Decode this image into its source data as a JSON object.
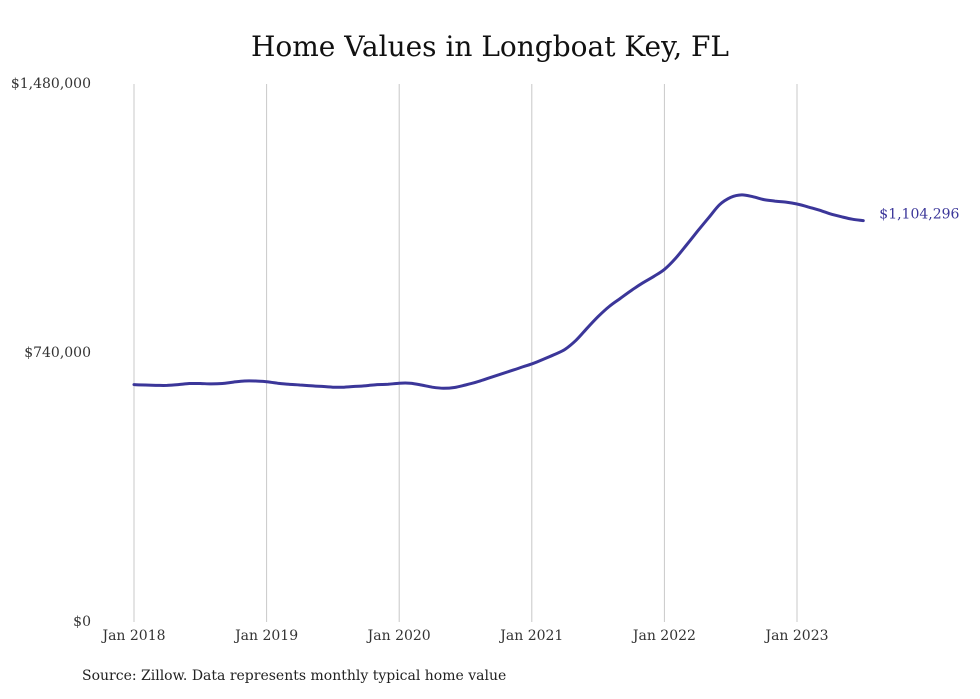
{
  "title": "Home Values in Longboat Key, FL",
  "source": "Source: Zillow. Data represents monthly typical home value",
  "colors": {
    "line": "#3b3699",
    "grid": "#c8c8c8",
    "end_label": "#3b3699"
  },
  "chart_data": {
    "type": "line",
    "title": "Home Values in Longboat Key, FL",
    "xlabel": "",
    "ylabel": "",
    "ylim": [
      0,
      1480000
    ],
    "y_ticks": [
      {
        "value": 0,
        "label": "$0"
      },
      {
        "value": 740000,
        "label": "$740,000"
      },
      {
        "value": 1480000,
        "label": "$1,480,000"
      }
    ],
    "x_ticks": [
      {
        "value": "2018-01",
        "label": "Jan 2018"
      },
      {
        "value": "2019-01",
        "label": "Jan 2019"
      },
      {
        "value": "2020-01",
        "label": "Jan 2020"
      },
      {
        "value": "2021-01",
        "label": "Jan 2021"
      },
      {
        "value": "2022-01",
        "label": "Jan 2022"
      },
      {
        "value": "2023-01",
        "label": "Jan 2023"
      }
    ],
    "grid": "vertical",
    "end_label": "$1,104,296",
    "series": [
      {
        "points": [
          [
            "2018-01",
            653000
          ],
          [
            "2018-02",
            652000
          ],
          [
            "2018-03",
            651000
          ],
          [
            "2018-04",
            651000
          ],
          [
            "2018-05",
            653000
          ],
          [
            "2018-06",
            656000
          ],
          [
            "2018-07",
            656000
          ],
          [
            "2018-08",
            655000
          ],
          [
            "2018-09",
            656000
          ],
          [
            "2018-10",
            660000
          ],
          [
            "2018-11",
            663000
          ],
          [
            "2018-12",
            663000
          ],
          [
            "2019-01",
            661000
          ],
          [
            "2019-02",
            657000
          ],
          [
            "2019-03",
            654000
          ],
          [
            "2019-04",
            652000
          ],
          [
            "2019-05",
            650000
          ],
          [
            "2019-06",
            648000
          ],
          [
            "2019-07",
            646000
          ],
          [
            "2019-08",
            646000
          ],
          [
            "2019-09",
            648000
          ],
          [
            "2019-10",
            650000
          ],
          [
            "2019-11",
            653000
          ],
          [
            "2019-12",
            654000
          ],
          [
            "2020-01",
            657000
          ],
          [
            "2020-02",
            657000
          ],
          [
            "2020-03",
            652000
          ],
          [
            "2020-04",
            646000
          ],
          [
            "2020-05",
            643000
          ],
          [
            "2020-06",
            645000
          ],
          [
            "2020-07",
            652000
          ],
          [
            "2020-08",
            660000
          ],
          [
            "2020-09",
            670000
          ],
          [
            "2020-10",
            680000
          ],
          [
            "2020-11",
            690000
          ],
          [
            "2020-12",
            700000
          ],
          [
            "2021-01",
            710000
          ],
          [
            "2021-02",
            722000
          ],
          [
            "2021-03",
            735000
          ],
          [
            "2021-04",
            750000
          ],
          [
            "2021-05",
            775000
          ],
          [
            "2021-06",
            808000
          ],
          [
            "2021-07",
            840000
          ],
          [
            "2021-08",
            868000
          ],
          [
            "2021-09",
            890000
          ],
          [
            "2021-10",
            912000
          ],
          [
            "2021-11",
            932000
          ],
          [
            "2021-12",
            950000
          ],
          [
            "2022-01",
            970000
          ],
          [
            "2022-02",
            1000000
          ],
          [
            "2022-03",
            1037000
          ],
          [
            "2022-04",
            1075000
          ],
          [
            "2022-05",
            1112000
          ],
          [
            "2022-06",
            1148000
          ],
          [
            "2022-07",
            1168000
          ],
          [
            "2022-08",
            1175000
          ],
          [
            "2022-09",
            1170000
          ],
          [
            "2022-10",
            1162000
          ],
          [
            "2022-11",
            1158000
          ],
          [
            "2022-12",
            1155000
          ],
          [
            "2023-01",
            1150000
          ],
          [
            "2023-02",
            1142000
          ],
          [
            "2023-03",
            1133000
          ],
          [
            "2023-04",
            1123000
          ],
          [
            "2023-05",
            1115000
          ],
          [
            "2023-06",
            1108000
          ],
          [
            "2023-07",
            1104296
          ]
        ]
      }
    ]
  }
}
